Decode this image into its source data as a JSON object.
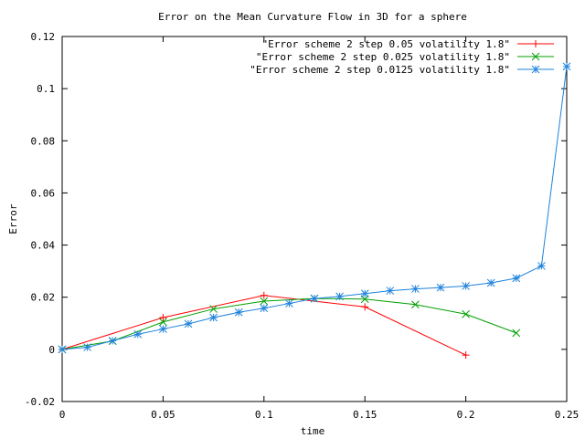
{
  "chart_data": {
    "type": "line",
    "title": "Error on the Mean Curvature Flow in  3D for a sphere",
    "xlabel": "time",
    "ylabel": "Error",
    "xlim": [
      0,
      0.25
    ],
    "ylim": [
      -0.02,
      0.12
    ],
    "xticks": [
      "0",
      "0.05",
      "0.1",
      "0.15",
      "0.2",
      "0.25"
    ],
    "yticks": [
      "-0.02",
      "0",
      "0.02",
      "0.04",
      "0.06",
      "0.08",
      "0.1",
      "0.12"
    ],
    "grid": false,
    "legend_position": "top-right",
    "series": [
      {
        "name": "\"Error scheme 2 step 0.05 volatility 1.8\"",
        "color": "#ff0000",
        "marker": "plus",
        "x": [
          0,
          0.05,
          0.1,
          0.15,
          0.2
        ],
        "y": [
          0,
          0.0122,
          0.0207,
          0.0163,
          -0.0022
        ]
      },
      {
        "name": "\"Error scheme 2 step 0.025 volatility 1.8\"",
        "color": "#00a000",
        "marker": "cross",
        "x": [
          0,
          0.025,
          0.05,
          0.075,
          0.1,
          0.125,
          0.15,
          0.175,
          0.2,
          0.225
        ],
        "y": [
          0,
          0.0032,
          0.0105,
          0.0155,
          0.0185,
          0.0195,
          0.0193,
          0.0172,
          0.0135,
          0.0063
        ]
      },
      {
        "name": "\"Error scheme 2 step 0.0125 volatility 1.8\"",
        "color": "#1e82dc",
        "marker": "star",
        "x": [
          0,
          0.0125,
          0.025,
          0.0375,
          0.05,
          0.0625,
          0.075,
          0.0875,
          0.1,
          0.1125,
          0.125,
          0.1375,
          0.15,
          0.1625,
          0.175,
          0.1875,
          0.2,
          0.2125,
          0.225,
          0.2375,
          0.25
        ],
        "y": [
          0,
          0.0008,
          0.0033,
          0.0058,
          0.0078,
          0.0098,
          0.0122,
          0.0142,
          0.0158,
          0.0176,
          0.0195,
          0.0203,
          0.0214,
          0.0225,
          0.0232,
          0.0237,
          0.0243,
          0.0255,
          0.0273,
          0.032,
          0.1085
        ]
      }
    ]
  }
}
